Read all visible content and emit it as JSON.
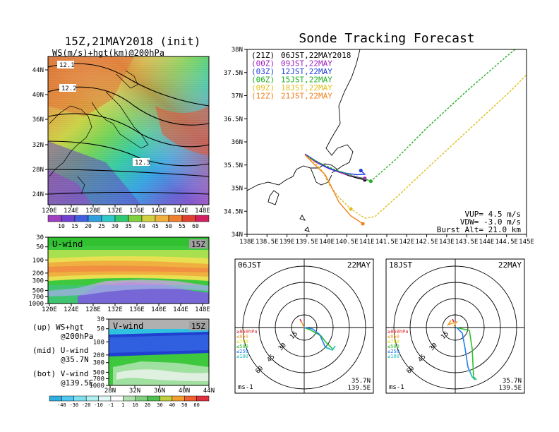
{
  "left_panel": {
    "title": "15Z,21MAY2018 (init)",
    "map_label": "WS(m/s)+hgt(km)@200hPa",
    "lat_ticks": [
      "44N",
      "40N",
      "36N",
      "32N",
      "28N",
      "24N"
    ],
    "lon_ticks": [
      "120E",
      "124E",
      "128E",
      "132E",
      "136E",
      "140E",
      "144E",
      "148E"
    ],
    "contour_labels": [
      "12.1",
      "12.2",
      "12.3"
    ],
    "ws_colorbar": [
      "10",
      "15",
      "20",
      "25",
      "30",
      "35",
      "40",
      "45",
      "50",
      "55",
      "60"
    ]
  },
  "uwind_panel": {
    "label": "U-wind",
    "time": "15Z",
    "p_ticks": [
      "30",
      "50",
      "100",
      "200",
      "300",
      "500",
      "700",
      "1000"
    ],
    "lon_ticks": [
      "120E",
      "124E",
      "128E",
      "132E",
      "136E",
      "140E",
      "144E",
      "148E"
    ]
  },
  "vwind_panel": {
    "label": "V-wind",
    "time": "15Z",
    "p_ticks": [
      "30",
      "50",
      "100",
      "200",
      "300",
      "500",
      "700",
      "1000"
    ],
    "lat_ticks": [
      "28N",
      "32N",
      "36N",
      "40N",
      "44N"
    ]
  },
  "legend_text": {
    "up": "(up) WS+hgt",
    "up2": "@200hPa",
    "mid": "(mid) U-wind",
    "mid2": "@35.7N",
    "bot": "(bot) V-wind",
    "bot2": "@139.5E"
  },
  "wind_colorbar": [
    "-40",
    "-30",
    "-20",
    "-10",
    "-1",
    "1",
    "10",
    "20",
    "30",
    "40",
    "50",
    "60"
  ],
  "track_panel": {
    "title": "Sonde Tracking Forecast",
    "lat_ticks": [
      "38N",
      "37.5N",
      "37N",
      "36.5N",
      "36N",
      "35.5N",
      "35N",
      "34.5N",
      "34N"
    ],
    "lon_ticks": [
      "138E",
      "138.5E",
      "139E",
      "139.5E",
      "140E",
      "140.5E",
      "141E",
      "141.5E",
      "142E",
      "142.5E",
      "143E",
      "143.5E",
      "144E",
      "144.5E",
      "145E"
    ],
    "legend": [
      {
        "utc": "(21Z)",
        "jst": "06JST,22MAY2018",
        "color": "#000000"
      },
      {
        "utc": "(00Z)",
        "jst": "09JST,22MAY",
        "color": "#a020c0"
      },
      {
        "utc": "(03Z)",
        "jst": "12JST,22MAY",
        "color": "#2040e0"
      },
      {
        "utc": "(06Z)",
        "jst": "15JST,22MAY",
        "color": "#20b020"
      },
      {
        "utc": "(09Z)",
        "jst": "18JST,22MAY",
        "color": "#e0c020"
      },
      {
        "utc": "(12Z)",
        "jst": "21JST,22MAY",
        "color": "#f08020"
      }
    ],
    "vup": "VUP=  4.5 m/s",
    "vdw": "VDW= -3.0 m/s",
    "burst": "Burst Alt= 21.0 km"
  },
  "hodo_left": {
    "time": "06JST",
    "date": "22MAY",
    "unit": "ms-1",
    "lat": "35.7N",
    "lon": "139.5E",
    "ring_labels": [
      "15",
      "30",
      "45",
      "60"
    ],
    "levels": [
      "≥850hPa",
      "≤850",
      "≤700",
      "≤500",
      "≤250",
      "≤100"
    ]
  },
  "hodo_right": {
    "time": "18JST",
    "date": "22MAY",
    "unit": "ms-1",
    "lat": "35.7N",
    "lon": "139.5E",
    "ring_labels": [
      "15",
      "30",
      "45",
      "60"
    ],
    "levels": [
      "≥850hPa",
      "≤850",
      "≤700",
      "≤500",
      "≤250",
      "≤100"
    ]
  },
  "chart_data": [
    {
      "type": "line",
      "title": "Sonde Tracking Forecast",
      "xlabel": "",
      "ylabel": "",
      "xlim": [
        138,
        145
      ],
      "ylim": [
        34,
        38
      ],
      "series": [
        {
          "name": "06JST,22MAY2018",
          "color": "#000000",
          "x": [
            139.45,
            139.7,
            140.0,
            140.3,
            140.55,
            140.75,
            140.95
          ],
          "y": [
            35.72,
            35.6,
            35.45,
            35.35,
            35.27,
            35.22,
            35.18
          ]
        },
        {
          "name": "09JST,22MAY",
          "color": "#a020c0",
          "x": [
            139.45,
            139.75,
            140.05,
            140.35,
            140.6,
            140.8,
            140.95
          ],
          "y": [
            35.72,
            35.55,
            35.42,
            35.33,
            35.27,
            35.23,
            35.21
          ]
        },
        {
          "name": "12JST,22MAY",
          "color": "#2040e0",
          "x": [
            139.45,
            139.7,
            139.95,
            140.2,
            140.5,
            140.75,
            140.95,
            140.85
          ],
          "y": [
            35.74,
            35.6,
            35.47,
            35.38,
            35.32,
            35.29,
            35.3,
            35.38
          ]
        },
        {
          "name": "15JST,22MAY",
          "color": "#20b020",
          "x": [
            139.45,
            139.8,
            140.2,
            140.6,
            140.95,
            141.1,
            141.7,
            142.5,
            143.5,
            144.5,
            145.0
          ],
          "y": [
            35.72,
            35.55,
            35.4,
            35.28,
            35.2,
            35.15,
            35.6,
            36.3,
            37.1,
            37.85,
            38.2
          ]
        },
        {
          "name": "18JST,22MAY",
          "color": "#e0c020",
          "x": [
            139.45,
            139.7,
            139.9,
            140.05,
            140.3,
            140.6,
            140.95,
            141.2,
            141.8,
            142.6,
            143.6,
            144.6,
            145.0
          ],
          "y": [
            35.72,
            35.55,
            35.35,
            35.08,
            34.8,
            34.55,
            34.35,
            34.38,
            34.85,
            35.5,
            36.3,
            37.1,
            37.45
          ]
        },
        {
          "name": "21JST,22MAY",
          "color": "#f08020",
          "x": [
            139.45,
            139.7,
            139.95,
            140.1,
            140.3,
            140.6,
            140.9
          ],
          "y": [
            35.72,
            35.5,
            35.3,
            35.05,
            34.7,
            34.4,
            34.23
          ]
        }
      ]
    }
  ]
}
